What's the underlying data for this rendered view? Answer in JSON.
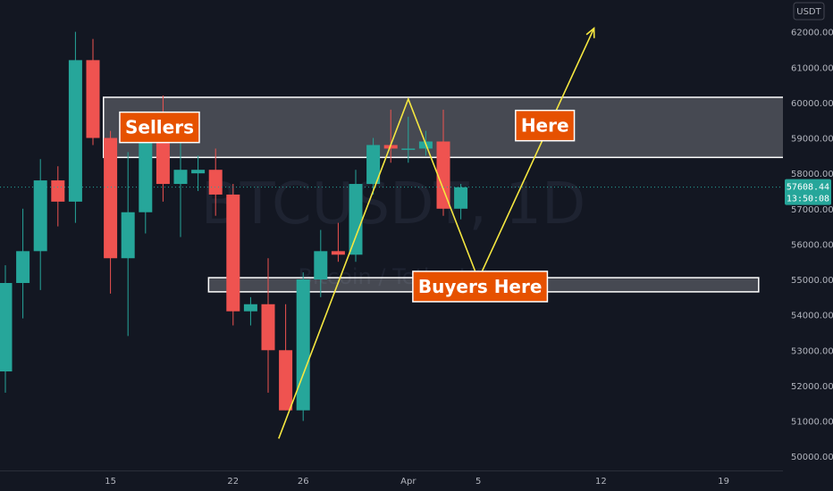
{
  "chart_data": {
    "type": "candlestick",
    "watermark": {
      "symbol": "BTCUSDT, 1D",
      "subtitle": "Bitcoin / TetherUS"
    },
    "y_axis": {
      "unit": "USDT",
      "ticks": [
        "62000.00",
        "61000.00",
        "60000.00",
        "59000.00",
        "58000.00",
        "57000.00",
        "56000.00",
        "55000.00",
        "54000.00",
        "53000.00",
        "52000.00",
        "51000.00",
        "50000.00"
      ],
      "tick_values": [
        62000,
        61000,
        60000,
        59000,
        58000,
        57000,
        56000,
        55000,
        54000,
        53000,
        52000,
        51000,
        50000
      ],
      "ylim": [
        49600,
        62900
      ]
    },
    "x_axis": {
      "ticks": [
        {
          "label": "15",
          "index": 6
        },
        {
          "label": "22",
          "index": 13
        },
        {
          "label": "26",
          "index": 17
        },
        {
          "label": "Apr",
          "index": 23
        },
        {
          "label": "5",
          "index": 27
        },
        {
          "label": "12",
          "index": 34
        },
        {
          "label": "19",
          "index": 41
        }
      ],
      "total_slots": 46
    },
    "last_price": {
      "value": "57608.44",
      "countdown": "13:50:08",
      "numeric": 57608.44
    },
    "candles": [
      {
        "o": 52400,
        "h": 55400,
        "l": 51800,
        "c": 54900
      },
      {
        "o": 54900,
        "h": 57000,
        "l": 53900,
        "c": 55800
      },
      {
        "o": 55800,
        "h": 58400,
        "l": 54700,
        "c": 57800
      },
      {
        "o": 57800,
        "h": 58200,
        "l": 56500,
        "c": 57200
      },
      {
        "o": 57200,
        "h": 62000,
        "l": 56600,
        "c": 61200
      },
      {
        "o": 61200,
        "h": 61800,
        "l": 58800,
        "c": 59000
      },
      {
        "o": 59000,
        "h": 59200,
        "l": 54600,
        "c": 55600
      },
      {
        "o": 55600,
        "h": 58600,
        "l": 53400,
        "c": 56900
      },
      {
        "o": 56900,
        "h": 59600,
        "l": 56300,
        "c": 59000
      },
      {
        "o": 59000,
        "h": 60200,
        "l": 57200,
        "c": 57700
      },
      {
        "o": 57700,
        "h": 58900,
        "l": 56200,
        "c": 58100
      },
      {
        "o": 58000,
        "h": 58500,
        "l": 57500,
        "c": 58100
      },
      {
        "o": 58100,
        "h": 58700,
        "l": 56800,
        "c": 57400
      },
      {
        "o": 57400,
        "h": 57700,
        "l": 53700,
        "c": 54100
      },
      {
        "o": 54100,
        "h": 54500,
        "l": 53700,
        "c": 54300
      },
      {
        "o": 54300,
        "h": 55600,
        "l": 51800,
        "c": 53000
      },
      {
        "o": 53000,
        "h": 54300,
        "l": 51300,
        "c": 51300
      },
      {
        "o": 51300,
        "h": 55200,
        "l": 51000,
        "c": 55000
      },
      {
        "o": 55000,
        "h": 56400,
        "l": 54500,
        "c": 55800
      },
      {
        "o": 55800,
        "h": 56600,
        "l": 55500,
        "c": 55700
      },
      {
        "o": 55700,
        "h": 58100,
        "l": 55500,
        "c": 57700
      },
      {
        "o": 57700,
        "h": 59000,
        "l": 57400,
        "c": 58800
      },
      {
        "o": 58800,
        "h": 59800,
        "l": 58300,
        "c": 58700
      },
      {
        "o": 58700,
        "h": 59600,
        "l": 58300,
        "c": 58700
      },
      {
        "o": 58700,
        "h": 59200,
        "l": 58500,
        "c": 58900
      },
      {
        "o": 58900,
        "h": 59800,
        "l": 56800,
        "c": 57000
      },
      {
        "o": 57000,
        "h": 57700,
        "l": 56700,
        "c": 57608
      }
    ],
    "zones": [
      {
        "name": "sellers-zone",
        "top": 60150,
        "bottom": 58450,
        "start_index": 5.6,
        "end_index": 45.0
      },
      {
        "name": "buyers-zone",
        "top": 55050,
        "bottom": 54650,
        "start_index": 11.6,
        "end_index": 43.0
      }
    ],
    "trend_path": [
      {
        "index": 15.6,
        "price": 50500
      },
      {
        "index": 23.0,
        "price": 60100
      },
      {
        "index": 27.0,
        "price": 55000
      },
      {
        "index": 33.6,
        "price": 62100
      }
    ],
    "labels": [
      {
        "text": "Sellers",
        "index": 8.8,
        "price": 59300
      },
      {
        "text": "Here",
        "index": 30.8,
        "price": 59350
      },
      {
        "text": "Buyers Here",
        "index": 27.1,
        "price": 54800
      }
    ],
    "colors": {
      "up": "#26a69a",
      "down": "#ef5350",
      "background": "#131722",
      "annotation_line": "#f5e740",
      "label_bg": "#e65100"
    }
  }
}
